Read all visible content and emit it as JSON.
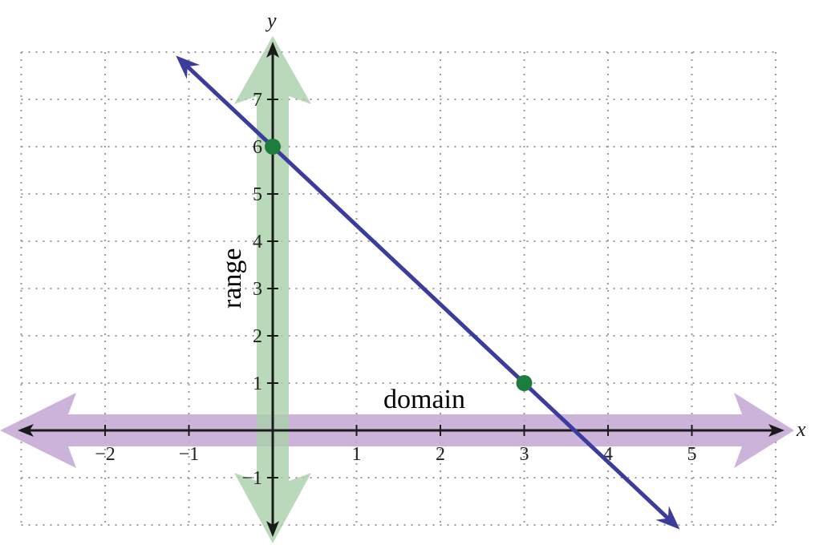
{
  "chart_data": {
    "type": "line",
    "x_axis": {
      "label": "x",
      "ticks": [
        -2,
        -1,
        1,
        2,
        3,
        4,
        5
      ],
      "tick_labels": [
        "−2",
        "−1",
        "1",
        "2",
        "3",
        "4",
        "5"
      ],
      "range": [
        -3,
        6
      ]
    },
    "y_axis": {
      "label": "y",
      "ticks": [
        -1,
        1,
        2,
        3,
        4,
        5,
        6,
        7
      ],
      "tick_labels": [
        "−1",
        "1",
        "2",
        "3",
        "4",
        "5",
        "6",
        "7"
      ],
      "range": [
        -2,
        8
      ]
    },
    "grid": true,
    "line": {
      "slope": -1.6667,
      "intercept": 6,
      "x_start": -1.1,
      "x_end": 4.8,
      "color": "#3b3c9b"
    },
    "points": [
      {
        "x": 0,
        "y": 6
      },
      {
        "x": 3,
        "y": 1
      }
    ],
    "point_color": "#1e7d3c",
    "domain_band": {
      "label": "domain",
      "color": "#c3a6d4",
      "orientation": "horizontal"
    },
    "range_band": {
      "label": "range",
      "color": "#a9cfa9",
      "orientation": "vertical"
    }
  }
}
